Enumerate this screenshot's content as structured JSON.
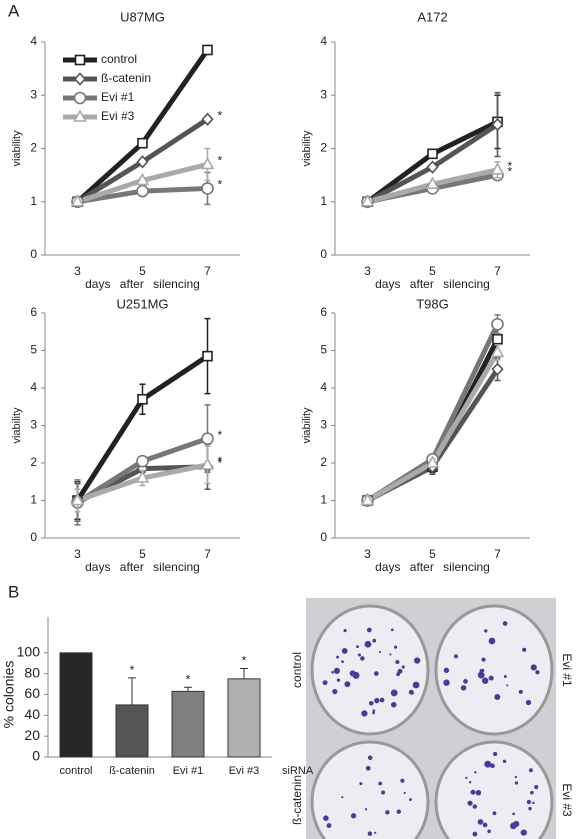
{
  "panel_labels": [
    "A",
    "B"
  ],
  "chart_data": [
    {
      "type": "line",
      "title": "U87MG",
      "categories": [
        "3",
        "5",
        "7"
      ],
      "x_label": "days after silencing",
      "y_label": "viability",
      "ylim": [
        0,
        4
      ],
      "yticks": [
        0,
        1,
        2,
        3,
        4
      ],
      "legend": "upper left",
      "series": [
        {
          "name": "control",
          "color": "#222222",
          "marker": "square",
          "values": [
            1,
            2.1,
            3.85
          ],
          "errors": [
            0,
            0.05,
            0.05
          ],
          "marker_labels": [
            null,
            null,
            null
          ]
        },
        {
          "name": "ß-catenin",
          "color": "#555555",
          "marker": "diamond",
          "values": [
            1,
            1.75,
            2.55
          ],
          "errors": [
            0,
            0.05,
            0.05
          ],
          "marker_labels": [
            null,
            null,
            "*"
          ]
        },
        {
          "name": "Evi #1",
          "color": "#777777",
          "marker": "circle",
          "values": [
            1,
            1.2,
            1.25
          ],
          "errors": [
            0,
            0.1,
            0.3
          ],
          "marker_labels": [
            null,
            null,
            "*"
          ]
        },
        {
          "name": "Evi #3",
          "color": "#aaaaaa",
          "marker": "triangle",
          "values": [
            1,
            1.4,
            1.7
          ],
          "errors": [
            0,
            0.05,
            0.3
          ],
          "marker_labels": [
            null,
            null,
            "*"
          ]
        }
      ]
    },
    {
      "type": "line",
      "title": "A172",
      "categories": [
        "3",
        "5",
        "7"
      ],
      "x_label": "days after silencing",
      "y_label": "viability",
      "ylim": [
        0,
        4
      ],
      "yticks": [
        0,
        1,
        2,
        3,
        4
      ],
      "series": [
        {
          "name": "control",
          "color": "#222222",
          "marker": "square",
          "values": [
            1,
            1.9,
            2.5
          ],
          "errors": [
            0,
            0.05,
            0.5
          ],
          "marker_labels": [
            null,
            null,
            null
          ]
        },
        {
          "name": "ß-catenin",
          "color": "#555555",
          "marker": "diamond",
          "values": [
            1,
            1.65,
            2.45
          ],
          "errors": [
            0,
            0.05,
            0.6
          ],
          "marker_labels": [
            null,
            null,
            null
          ]
        },
        {
          "name": "Evi #1",
          "color": "#777777",
          "marker": "circle",
          "values": [
            1,
            1.25,
            1.5
          ],
          "errors": [
            0,
            0.05,
            0.05
          ],
          "marker_labels": [
            null,
            null,
            "*"
          ]
        },
        {
          "name": "Evi #3",
          "color": "#aaaaaa",
          "marker": "triangle",
          "values": [
            1,
            1.33,
            1.6
          ],
          "errors": [
            0,
            0.05,
            0.15
          ],
          "marker_labels": [
            null,
            null,
            "*"
          ]
        }
      ]
    },
    {
      "type": "line",
      "title": "U251MG",
      "categories": [
        "3",
        "5",
        "7"
      ],
      "x_label": "days after silencing",
      "y_label": "viability",
      "ylim": [
        0,
        6
      ],
      "yticks": [
        0,
        1,
        2,
        3,
        4,
        5,
        6
      ],
      "series": [
        {
          "name": "control",
          "color": "#222222",
          "marker": "square",
          "values": [
            1,
            3.7,
            4.85
          ],
          "errors": [
            0.5,
            0.4,
            1
          ],
          "marker_labels": [
            null,
            null,
            null
          ]
        },
        {
          "name": "ß-catenin",
          "color": "#555555",
          "marker": "diamond",
          "values": [
            0.95,
            1.85,
            1.9
          ],
          "errors": [
            0.5,
            0.1,
            0.6
          ],
          "marker_labels": [
            null,
            null,
            "*"
          ]
        },
        {
          "name": "Evi #1",
          "color": "#777777",
          "marker": "circle",
          "values": [
            0.95,
            2.05,
            2.65
          ],
          "errors": [
            0.6,
            0.1,
            0.9
          ],
          "marker_labels": [
            null,
            null,
            "*"
          ]
        },
        {
          "name": "Evi #3",
          "color": "#aaaaaa",
          "marker": "triangle",
          "values": [
            1,
            1.6,
            1.95
          ],
          "errors": [
            0.3,
            0.2,
            0.5
          ],
          "marker_labels": [
            null,
            null,
            "*"
          ]
        }
      ]
    },
    {
      "type": "line",
      "title": "T98G",
      "categories": [
        "3",
        "5",
        "7"
      ],
      "x_label": "days after silencing",
      "y_label": "viability",
      "ylim": [
        0,
        6
      ],
      "yticks": [
        0,
        1,
        2,
        3,
        4,
        5,
        6
      ],
      "series": [
        {
          "name": "control",
          "color": "#222222",
          "marker": "square",
          "values": [
            1,
            1.9,
            5.3
          ],
          "errors": [
            0,
            0.15,
            0.3
          ],
          "marker_labels": [
            null,
            null,
            null
          ]
        },
        {
          "name": "ß-catenin",
          "color": "#555555",
          "marker": "diamond",
          "values": [
            1,
            1.9,
            4.5
          ],
          "errors": [
            0,
            0.2,
            0.3
          ],
          "marker_labels": [
            null,
            null,
            null
          ]
        },
        {
          "name": "Evi #1",
          "color": "#777777",
          "marker": "circle",
          "values": [
            1,
            2.1,
            5.7
          ],
          "errors": [
            0,
            0.1,
            0.25
          ],
          "marker_labels": [
            null,
            null,
            null
          ]
        },
        {
          "name": "Evi #3",
          "color": "#aaaaaa",
          "marker": "triangle",
          "values": [
            1,
            2.0,
            4.95
          ],
          "errors": [
            0,
            0.1,
            0.2
          ],
          "marker_labels": [
            null,
            null,
            null
          ]
        }
      ]
    },
    {
      "type": "bar",
      "categories": [
        "control",
        "ß-catenin",
        "Evi #1",
        "Evi #3"
      ],
      "x_label": "siRNA",
      "y_label": "% colonies",
      "ylim": [
        0,
        120
      ],
      "yticks": [
        0,
        20,
        40,
        60,
        80,
        100
      ],
      "values": [
        100,
        50,
        63,
        75
      ],
      "errors": [
        0,
        26,
        4,
        10
      ],
      "colors": [
        "#262626",
        "#555555",
        "#808080",
        "#b0b0b0"
      ],
      "annotations": [
        null,
        "*",
        "*",
        "*"
      ]
    }
  ],
  "plates": {
    "left_labels": [
      "control",
      "ß-catenin"
    ],
    "right_labels": [
      "Evi #1",
      "Evi #3"
    ]
  }
}
